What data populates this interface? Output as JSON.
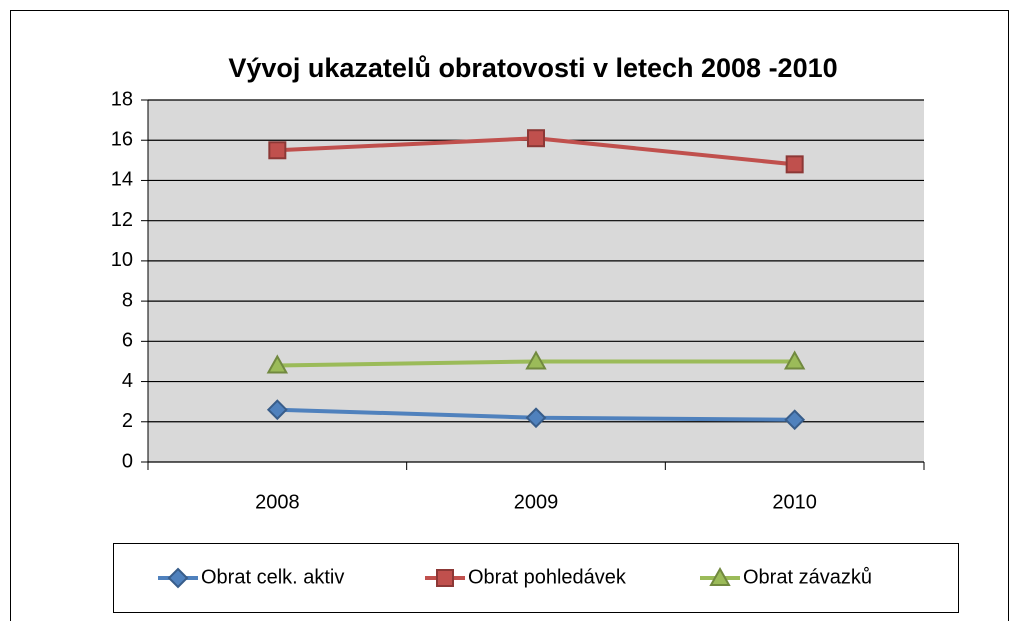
{
  "chart_data": {
    "type": "line",
    "title": "Vývoj ukazatelů obratovosti v letech 2008 -2010",
    "categories": [
      "2008",
      "2009",
      "2010"
    ],
    "series": [
      {
        "name": "Obrat celk. aktiv",
        "color": "#4f81bd",
        "marker": "diamond",
        "values": [
          2.6,
          2.2,
          2.1
        ]
      },
      {
        "name": "Obrat pohledávek",
        "color": "#c0504d",
        "marker": "square",
        "values": [
          15.5,
          16.1,
          14.8
        ]
      },
      {
        "name": "Obrat závazků",
        "color": "#9bbb59",
        "marker": "triangle",
        "values": [
          4.8,
          5.0,
          5.0
        ]
      }
    ],
    "ylim": [
      0,
      18
    ],
    "yticks": [
      0,
      2,
      4,
      6,
      8,
      10,
      12,
      14,
      16,
      18
    ],
    "grid": true,
    "legend": "bottom"
  }
}
